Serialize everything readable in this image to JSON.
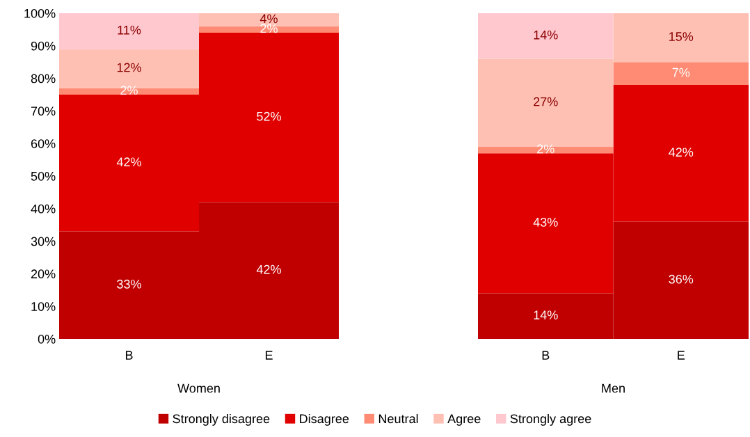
{
  "chart_data": [
    {
      "type": "bar",
      "stacked": true,
      "xlabel": "Women",
      "categories": [
        "B",
        "E"
      ],
      "ylim": [
        0,
        100
      ],
      "yticks": [
        {
          "value": 0,
          "label": "0%"
        },
        {
          "value": 10,
          "label": "10%"
        },
        {
          "value": 20,
          "label": "20%"
        },
        {
          "value": 30,
          "label": "30%"
        },
        {
          "value": 40,
          "label": "40%"
        },
        {
          "value": 50,
          "label": "50%"
        },
        {
          "value": 60,
          "label": "60%"
        },
        {
          "value": 70,
          "label": "70%"
        },
        {
          "value": 80,
          "label": "80%"
        },
        {
          "value": 90,
          "label": "90%"
        },
        {
          "value": 100,
          "label": "100%"
        }
      ],
      "grid": false,
      "legend": "bottom",
      "series": [
        {
          "name": "Strongly disagree",
          "color": "#c00000",
          "values": [
            33,
            42
          ],
          "value_labels": [
            "33%",
            "42%"
          ]
        },
        {
          "name": "Disagree",
          "color": "#e00000",
          "values": [
            42,
            52
          ],
          "value_labels": [
            "42%",
            "52%"
          ]
        },
        {
          "name": "Neutral",
          "color": "#ff8b74",
          "values": [
            2,
            2
          ],
          "value_labels": [
            "2%",
            "2%"
          ]
        },
        {
          "name": "Agree",
          "color": "#ffc0b4",
          "values": [
            12,
            4
          ],
          "value_labels": [
            "12%",
            "4%"
          ]
        },
        {
          "name": "Strongly agree",
          "color": "#ffc7ce",
          "values": [
            11,
            null
          ],
          "value_labels": [
            "11%",
            null
          ]
        }
      ]
    },
    {
      "type": "bar",
      "stacked": true,
      "xlabel": "Men",
      "categories": [
        "B",
        "E"
      ],
      "ylim": [
        0,
        100
      ],
      "tick_labels": "x",
      "grid": false,
      "legend": false,
      "series": [
        {
          "name": "Strongly disagree",
          "color": "#c00000",
          "values": [
            14,
            36
          ],
          "value_labels": [
            "14%",
            "36%"
          ]
        },
        {
          "name": "Disagree",
          "color": "#e00000",
          "values": [
            43,
            42
          ],
          "value_labels": [
            "43%",
            "42%"
          ]
        },
        {
          "name": "Neutral",
          "color": "#ff8b74",
          "values": [
            2,
            7
          ],
          "value_labels": [
            "2%",
            "7%"
          ]
        },
        {
          "name": "Agree",
          "color": "#ffc0b4",
          "values": [
            27,
            15
          ],
          "value_labels": [
            "27%",
            "15%"
          ]
        },
        {
          "name": "Strongly agree",
          "color": "#ffc7ce",
          "values": [
            14,
            null
          ],
          "value_labels": [
            "14%",
            null
          ]
        }
      ]
    }
  ]
}
